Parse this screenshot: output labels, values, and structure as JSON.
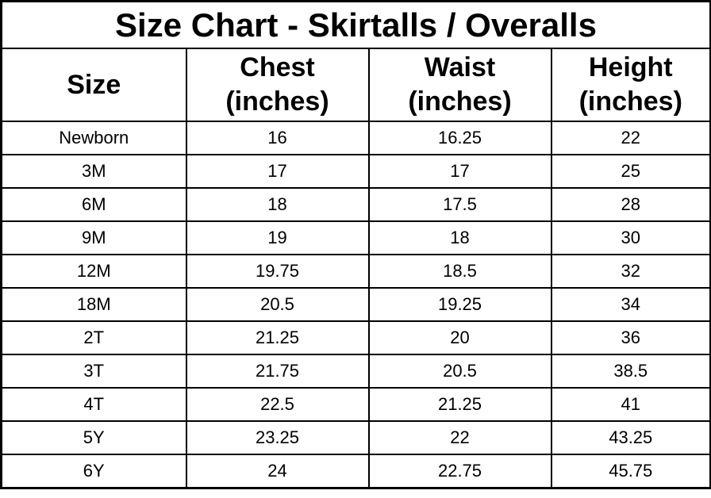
{
  "title": "Size Chart - Skirtalls / Overalls",
  "table": {
    "headers": [
      {
        "line1": "Size",
        "line2": ""
      },
      {
        "line1": "Chest",
        "line2": "(inches)"
      },
      {
        "line1": "Waist",
        "line2": "(inches)"
      },
      {
        "line1": "Height",
        "line2": "(inches)"
      }
    ],
    "rows": [
      [
        "Newborn",
        "16",
        "16.25",
        "22"
      ],
      [
        "3M",
        "17",
        "17",
        "25"
      ],
      [
        "6M",
        "18",
        "17.5",
        "28"
      ],
      [
        "9M",
        "19",
        "18",
        "30"
      ],
      [
        "12M",
        "19.75",
        "18.5",
        "32"
      ],
      [
        "18M",
        "20.5",
        "19.25",
        "34"
      ],
      [
        "2T",
        "21.25",
        "20",
        "36"
      ],
      [
        "3T",
        "21.75",
        "20.5",
        "38.5"
      ],
      [
        "4T",
        "22.5",
        "21.25",
        "41"
      ],
      [
        "5Y",
        "23.25",
        "22",
        "43.25"
      ],
      [
        "6Y",
        "24",
        "22.75",
        "45.75"
      ]
    ]
  },
  "chart_data": {
    "type": "table",
    "title": "Size Chart - Skirtalls / Overalls",
    "columns": [
      "Size",
      "Chest (inches)",
      "Waist (inches)",
      "Height (inches)"
    ],
    "rows": [
      [
        "Newborn",
        16,
        16.25,
        22
      ],
      [
        "3M",
        17,
        17,
        25
      ],
      [
        "6M",
        18,
        17.5,
        28
      ],
      [
        "9M",
        19,
        18,
        30
      ],
      [
        "12M",
        19.75,
        18.5,
        32
      ],
      [
        "18M",
        20.5,
        19.25,
        34
      ],
      [
        "2T",
        21.25,
        20,
        36
      ],
      [
        "3T",
        21.75,
        20.5,
        38.5
      ],
      [
        "4T",
        22.5,
        21.25,
        41
      ],
      [
        "5Y",
        23.25,
        22,
        43.25
      ],
      [
        "6Y",
        24,
        22.75,
        45.75
      ]
    ],
    "colors": {
      "text": "#000000",
      "border": "#000000",
      "background": "#ffffff"
    }
  }
}
